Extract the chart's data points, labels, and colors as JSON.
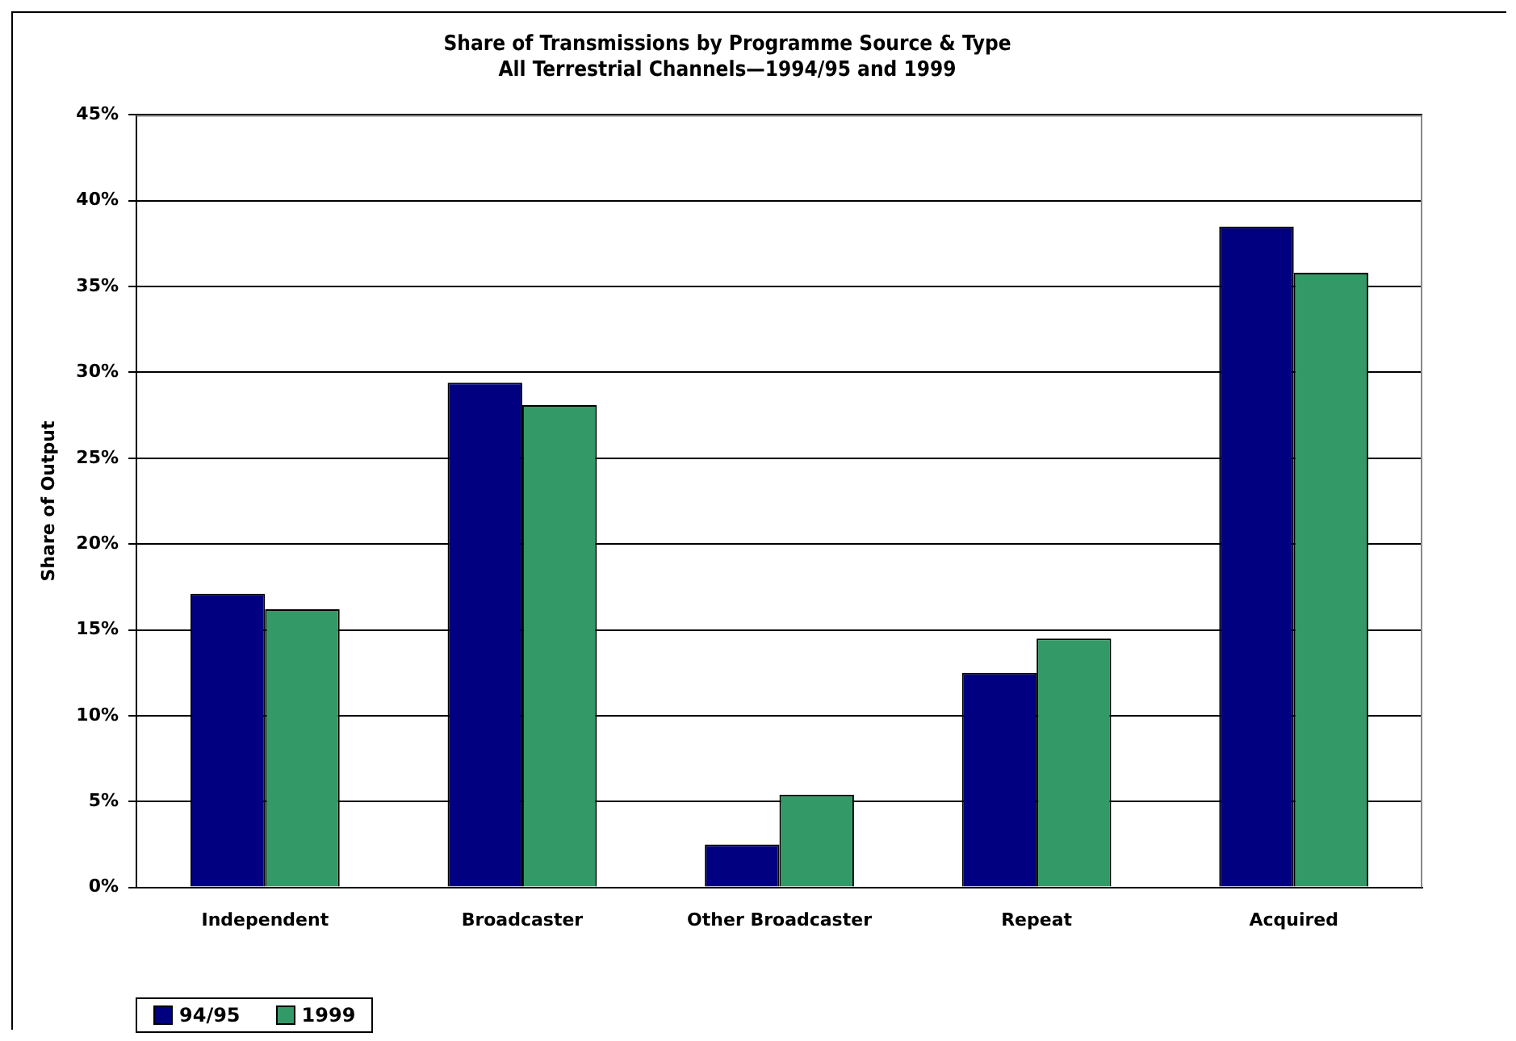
{
  "chart_data": {
    "type": "bar",
    "title": "Share of Transmissions by Programme Source & Type",
    "subtitle": "All Terrestrial Channels—1994/95 and 1999",
    "ylabel": "Share of Output",
    "categories": [
      "Independent",
      "Broadcaster",
      "Other Broadcaster",
      "Repeat",
      "Acquired"
    ],
    "series": [
      {
        "name": "94/95",
        "color": "#000080",
        "values": [
          17.1,
          29.4,
          2.5,
          12.5,
          38.5
        ]
      },
      {
        "name": "1999",
        "color": "#339966",
        "values": [
          16.2,
          28.1,
          5.4,
          14.5,
          35.8
        ]
      }
    ],
    "ylim": [
      0,
      45
    ],
    "yticks": [
      {
        "value": 0,
        "label": "0%"
      },
      {
        "value": 5,
        "label": "5%"
      },
      {
        "value": 10,
        "label": "10%"
      },
      {
        "value": 15,
        "label": "15%"
      },
      {
        "value": 20,
        "label": "20%"
      },
      {
        "value": 25,
        "label": "25%"
      },
      {
        "value": 30,
        "label": "30%"
      },
      {
        "value": 35,
        "label": "35%"
      },
      {
        "value": 40,
        "label": "40%"
      },
      {
        "value": 45,
        "label": "45%"
      }
    ],
    "grid": "y",
    "legend": "bottom left"
  }
}
